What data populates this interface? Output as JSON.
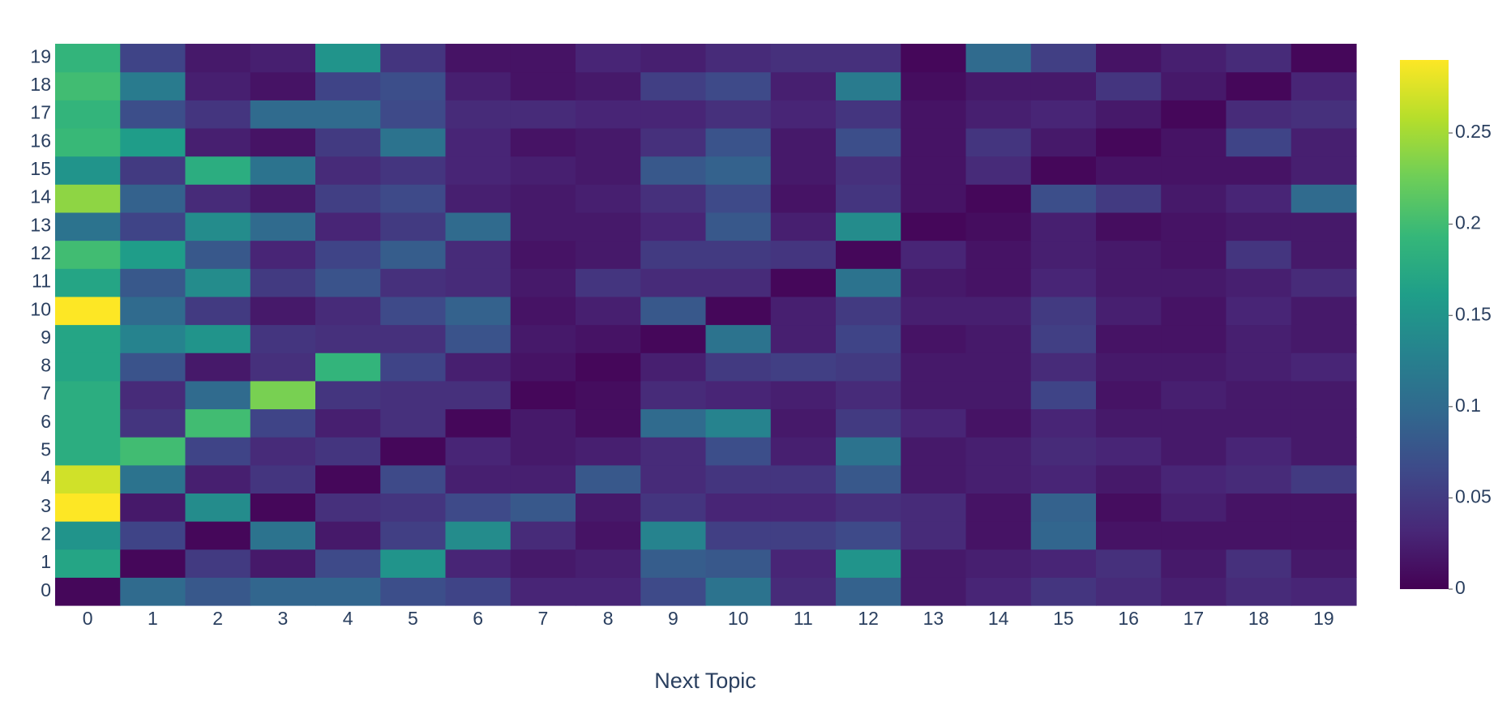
{
  "chart_data": {
    "type": "heatmap",
    "x_title": "Next Topic",
    "x": [
      "0",
      "1",
      "2",
      "3",
      "4",
      "5",
      "6",
      "7",
      "8",
      "9",
      "10",
      "11",
      "12",
      "13",
      "14",
      "15",
      "16",
      "17",
      "18",
      "19"
    ],
    "y": [
      "0",
      "1",
      "2",
      "3",
      "4",
      "5",
      "6",
      "7",
      "8",
      "9",
      "10",
      "11",
      "12",
      "13",
      "14",
      "15",
      "16",
      "17",
      "18",
      "19"
    ],
    "z": [
      [
        0.005,
        0.1,
        0.08,
        0.095,
        0.095,
        0.07,
        0.06,
        0.03,
        0.03,
        0.065,
        0.11,
        0.035,
        0.09,
        0.02,
        0.03,
        0.045,
        0.035,
        0.025,
        0.035,
        0.03
      ],
      [
        0.17,
        0.005,
        0.05,
        0.02,
        0.065,
        0.15,
        0.03,
        0.02,
        0.025,
        0.085,
        0.08,
        0.03,
        0.15,
        0.02,
        0.025,
        0.03,
        0.04,
        0.02,
        0.04,
        0.02
      ],
      [
        0.15,
        0.06,
        0.005,
        0.11,
        0.02,
        0.055,
        0.14,
        0.035,
        0.015,
        0.13,
        0.055,
        0.055,
        0.065,
        0.035,
        0.015,
        0.095,
        0.015,
        0.015,
        0.015,
        0.015
      ],
      [
        0.29,
        0.02,
        0.14,
        0.005,
        0.04,
        0.045,
        0.065,
        0.08,
        0.02,
        0.045,
        0.03,
        0.03,
        0.04,
        0.035,
        0.015,
        0.09,
        0.01,
        0.025,
        0.015,
        0.015
      ],
      [
        0.27,
        0.11,
        0.025,
        0.045,
        0.005,
        0.065,
        0.025,
        0.025,
        0.08,
        0.035,
        0.045,
        0.045,
        0.08,
        0.02,
        0.025,
        0.03,
        0.02,
        0.03,
        0.035,
        0.05
      ],
      [
        0.18,
        0.2,
        0.06,
        0.035,
        0.045,
        0.005,
        0.03,
        0.02,
        0.025,
        0.035,
        0.07,
        0.025,
        0.11,
        0.02,
        0.025,
        0.035,
        0.03,
        0.02,
        0.03,
        0.02
      ],
      [
        0.18,
        0.045,
        0.2,
        0.06,
        0.025,
        0.04,
        0.005,
        0.02,
        0.01,
        0.1,
        0.13,
        0.02,
        0.05,
        0.03,
        0.015,
        0.03,
        0.02,
        0.02,
        0.02,
        0.02
      ],
      [
        0.18,
        0.035,
        0.1,
        0.23,
        0.045,
        0.04,
        0.04,
        0.005,
        0.01,
        0.035,
        0.03,
        0.025,
        0.035,
        0.02,
        0.02,
        0.06,
        0.015,
        0.025,
        0.02,
        0.02
      ],
      [
        0.17,
        0.075,
        0.02,
        0.04,
        0.19,
        0.06,
        0.025,
        0.015,
        0.005,
        0.025,
        0.05,
        0.055,
        0.05,
        0.02,
        0.02,
        0.035,
        0.02,
        0.02,
        0.025,
        0.03
      ],
      [
        0.17,
        0.13,
        0.15,
        0.045,
        0.04,
        0.04,
        0.075,
        0.02,
        0.015,
        0.005,
        0.11,
        0.025,
        0.06,
        0.015,
        0.02,
        0.055,
        0.015,
        0.015,
        0.025,
        0.02
      ],
      [
        0.29,
        0.1,
        0.05,
        0.02,
        0.035,
        0.065,
        0.09,
        0.015,
        0.025,
        0.08,
        0.005,
        0.025,
        0.05,
        0.025,
        0.025,
        0.05,
        0.025,
        0.015,
        0.03,
        0.02
      ],
      [
        0.17,
        0.08,
        0.14,
        0.05,
        0.075,
        0.04,
        0.035,
        0.02,
        0.045,
        0.035,
        0.035,
        0.005,
        0.11,
        0.02,
        0.015,
        0.03,
        0.02,
        0.02,
        0.025,
        0.035
      ],
      [
        0.2,
        0.16,
        0.08,
        0.03,
        0.06,
        0.085,
        0.035,
        0.015,
        0.02,
        0.05,
        0.05,
        0.045,
        0.005,
        0.03,
        0.015,
        0.025,
        0.02,
        0.015,
        0.045,
        0.02
      ],
      [
        0.11,
        0.06,
        0.14,
        0.1,
        0.03,
        0.05,
        0.1,
        0.02,
        0.02,
        0.03,
        0.08,
        0.025,
        0.14,
        0.005,
        0.01,
        0.025,
        0.01,
        0.015,
        0.02,
        0.02
      ],
      [
        0.24,
        0.09,
        0.035,
        0.02,
        0.055,
        0.065,
        0.025,
        0.02,
        0.025,
        0.04,
        0.065,
        0.015,
        0.045,
        0.015,
        0.005,
        0.07,
        0.05,
        0.02,
        0.03,
        0.1
      ],
      [
        0.15,
        0.05,
        0.18,
        0.11,
        0.035,
        0.045,
        0.03,
        0.025,
        0.02,
        0.08,
        0.09,
        0.02,
        0.04,
        0.015,
        0.035,
        0.005,
        0.015,
        0.015,
        0.015,
        0.025
      ],
      [
        0.195,
        0.16,
        0.025,
        0.015,
        0.05,
        0.11,
        0.03,
        0.015,
        0.02,
        0.04,
        0.075,
        0.02,
        0.07,
        0.015,
        0.045,
        0.02,
        0.005,
        0.015,
        0.06,
        0.025
      ],
      [
        0.19,
        0.07,
        0.045,
        0.1,
        0.1,
        0.065,
        0.035,
        0.035,
        0.03,
        0.03,
        0.04,
        0.03,
        0.045,
        0.015,
        0.025,
        0.03,
        0.02,
        0.005,
        0.035,
        0.04
      ],
      [
        0.2,
        0.12,
        0.025,
        0.015,
        0.06,
        0.07,
        0.025,
        0.015,
        0.02,
        0.055,
        0.065,
        0.025,
        0.12,
        0.01,
        0.02,
        0.02,
        0.045,
        0.02,
        0.005,
        0.03
      ],
      [
        0.19,
        0.06,
        0.02,
        0.025,
        0.15,
        0.045,
        0.015,
        0.015,
        0.03,
        0.025,
        0.035,
        0.04,
        0.04,
        0.005,
        0.1,
        0.055,
        0.015,
        0.025,
        0.035,
        0.005
      ]
    ],
    "zlim": [
      0,
      0.29
    ],
    "zticks": [
      0,
      0.05,
      0.1,
      0.15,
      0.2,
      0.25
    ],
    "colorscale": [
      "#440154",
      "#482878",
      "#3e4989",
      "#31688e",
      "#26828e",
      "#1f9e89",
      "#35b779",
      "#6ece58",
      "#b5de2b",
      "#fde725"
    ]
  }
}
